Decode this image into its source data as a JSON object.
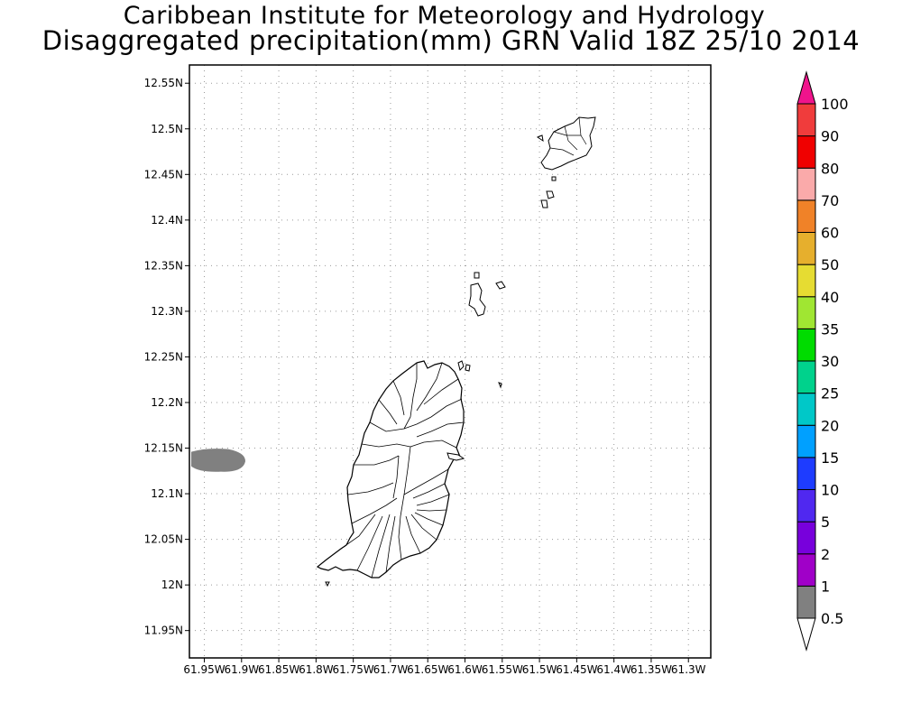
{
  "header": {
    "line1": "Caribbean Institute for Meteorology and Hydrology",
    "line2": "Disaggregated precipitation(mm) GRN Valid 18Z 25/10 2014"
  },
  "map": {
    "lon_range": [
      -61.97,
      -61.27
    ],
    "lat_range": [
      11.92,
      12.57
    ],
    "y_ticks": [
      {
        "value": 12.55,
        "label": "12.55N"
      },
      {
        "value": 12.5,
        "label": "12.5N"
      },
      {
        "value": 12.45,
        "label": "12.45N"
      },
      {
        "value": 12.4,
        "label": "12.4N"
      },
      {
        "value": 12.35,
        "label": "12.35N"
      },
      {
        "value": 12.3,
        "label": "12.3N"
      },
      {
        "value": 12.25,
        "label": "12.25N"
      },
      {
        "value": 12.2,
        "label": "12.2N"
      },
      {
        "value": 12.15,
        "label": "12.15N"
      },
      {
        "value": 12.1,
        "label": "12.1N"
      },
      {
        "value": 12.05,
        "label": "12.05N"
      },
      {
        "value": 12.0,
        "label": "12N"
      },
      {
        "value": 11.95,
        "label": "11.95N"
      }
    ],
    "x_ticks": [
      {
        "value": -61.95,
        "label": "61.95W"
      },
      {
        "value": -61.9,
        "label": "61.9W"
      },
      {
        "value": -61.85,
        "label": "61.85W"
      },
      {
        "value": -61.8,
        "label": "61.8W"
      },
      {
        "value": -61.75,
        "label": "61.75W"
      },
      {
        "value": -61.7,
        "label": "61.7W"
      },
      {
        "value": -61.65,
        "label": "61.65W"
      },
      {
        "value": -61.6,
        "label": "61.6W"
      },
      {
        "value": -61.55,
        "label": "61.55W"
      },
      {
        "value": -61.5,
        "label": "61.5W"
      },
      {
        "value": -61.45,
        "label": "61.45W"
      },
      {
        "value": -61.4,
        "label": "61.4W"
      },
      {
        "value": -61.35,
        "label": "61.35W"
      },
      {
        "value": -61.3,
        "label": "61.3W"
      }
    ],
    "grid": true,
    "precip_area": {
      "center_lon": -61.935,
      "center_lat": 12.137,
      "bin": "0.5-1",
      "color": "#808080"
    }
  },
  "colorbar": {
    "bins": [
      {
        "lower": "0.5",
        "color": "#808080"
      },
      {
        "lower": "1",
        "color": "#a000c8"
      },
      {
        "lower": "2",
        "color": "#7800dc"
      },
      {
        "lower": "5",
        "color": "#5028f0"
      },
      {
        "lower": "10",
        "color": "#1e3cff"
      },
      {
        "lower": "15",
        "color": "#00a0ff"
      },
      {
        "lower": "20",
        "color": "#00c8c8"
      },
      {
        "lower": "25",
        "color": "#00d28c"
      },
      {
        "lower": "30",
        "color": "#00dc00"
      },
      {
        "lower": "35",
        "color": "#a0e632"
      },
      {
        "lower": "40",
        "color": "#e6dc32"
      },
      {
        "lower": "50",
        "color": "#e6af2d"
      },
      {
        "lower": "60",
        "color": "#f08228"
      },
      {
        "lower": "70",
        "color": "#faaaaa"
      },
      {
        "lower": "80",
        "color": "#f00000"
      },
      {
        "lower": "90",
        "color": "#f03c3c"
      },
      {
        "lower": "100",
        "color": "#f0148c"
      }
    ]
  }
}
